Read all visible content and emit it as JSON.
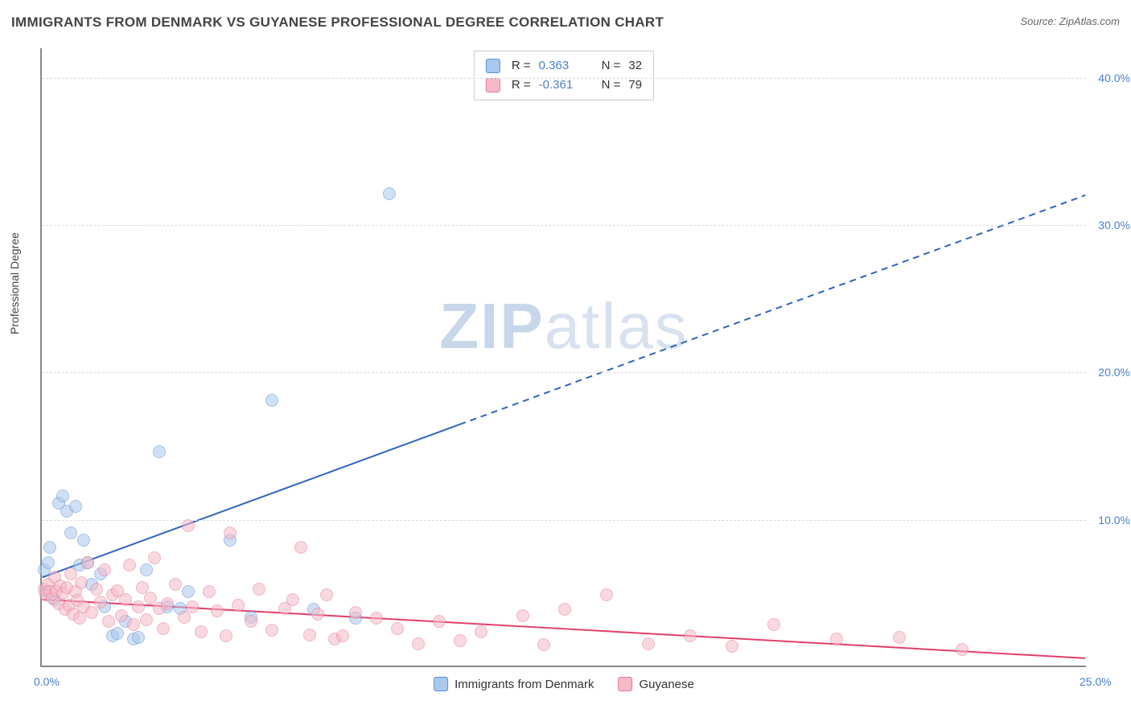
{
  "title": "IMMIGRANTS FROM DENMARK VS GUYANESE PROFESSIONAL DEGREE CORRELATION CHART",
  "source_label": "Source: ",
  "source_value": "ZipAtlas.com",
  "y_axis_label": "Professional Degree",
  "watermark_a": "ZIP",
  "watermark_b": "atlas",
  "chart": {
    "type": "scatter",
    "background_color": "#ffffff",
    "grid_color": "#dddddd",
    "axis_color": "#888888",
    "xlim": [
      0,
      25
    ],
    "ylim": [
      0,
      42
    ],
    "x_ticks": [
      {
        "v": 0,
        "label": "0.0%"
      },
      {
        "v": 25,
        "label": "25.0%"
      }
    ],
    "y_ticks": [
      {
        "v": 10,
        "label": "10.0%"
      },
      {
        "v": 20,
        "label": "20.0%"
      },
      {
        "v": 30,
        "label": "30.0%"
      },
      {
        "v": 40,
        "label": "40.0%"
      }
    ],
    "marker_radius": 8,
    "marker_stroke_width": 1.5,
    "series": [
      {
        "id": "denmark",
        "label": "Immigrants from Denmark",
        "fill_color": "#aac7ec",
        "stroke_color": "#5b8fd6",
        "fill_opacity": 0.55,
        "R": "0.363",
        "N": "32",
        "trend": {
          "x1": 0,
          "y1": 6.0,
          "x2": 25,
          "y2": 32.0,
          "solid_until_x": 10,
          "color": "#2f64c0",
          "width": 2,
          "dash": "8 6"
        },
        "points": [
          [
            0.05,
            6.5
          ],
          [
            0.1,
            5.0
          ],
          [
            0.15,
            7.0
          ],
          [
            0.2,
            8.0
          ],
          [
            0.3,
            4.5
          ],
          [
            0.4,
            11.0
          ],
          [
            0.5,
            11.5
          ],
          [
            0.6,
            10.5
          ],
          [
            0.7,
            9.0
          ],
          [
            0.8,
            10.8
          ],
          [
            0.9,
            6.8
          ],
          [
            1.0,
            8.5
          ],
          [
            1.1,
            7.0
          ],
          [
            1.2,
            5.5
          ],
          [
            1.4,
            6.2
          ],
          [
            1.5,
            4.0
          ],
          [
            1.7,
            2.0
          ],
          [
            1.8,
            2.2
          ],
          [
            2.0,
            3.0
          ],
          [
            2.2,
            1.8
          ],
          [
            2.3,
            1.9
          ],
          [
            2.5,
            6.5
          ],
          [
            2.8,
            14.5
          ],
          [
            3.0,
            4.0
          ],
          [
            3.3,
            3.9
          ],
          [
            3.5,
            5.0
          ],
          [
            4.5,
            8.5
          ],
          [
            5.0,
            3.3
          ],
          [
            5.5,
            18.0
          ],
          [
            6.5,
            3.8
          ],
          [
            7.5,
            3.2
          ],
          [
            8.3,
            32.0
          ]
        ]
      },
      {
        "id": "guyanese",
        "label": "Guyanese",
        "fill_color": "#f5b9c8",
        "stroke_color": "#e37a99",
        "fill_opacity": 0.55,
        "R": "-0.361",
        "N": "79",
        "trend": {
          "x1": 0,
          "y1": 4.5,
          "x2": 25,
          "y2": 0.5,
          "solid_until_x": 25,
          "color": "#e23f6a",
          "width": 2,
          "dash": null
        },
        "points": [
          [
            0.05,
            5.2
          ],
          [
            0.1,
            4.8
          ],
          [
            0.15,
            5.5
          ],
          [
            0.2,
            5.0
          ],
          [
            0.25,
            4.6
          ],
          [
            0.3,
            6.0
          ],
          [
            0.35,
            5.1
          ],
          [
            0.4,
            4.2
          ],
          [
            0.45,
            5.4
          ],
          [
            0.5,
            4.9
          ],
          [
            0.55,
            3.8
          ],
          [
            0.6,
            5.3
          ],
          [
            0.65,
            4.1
          ],
          [
            0.7,
            6.2
          ],
          [
            0.75,
            3.5
          ],
          [
            0.8,
            5.0
          ],
          [
            0.85,
            4.4
          ],
          [
            0.9,
            3.2
          ],
          [
            0.95,
            5.6
          ],
          [
            1.0,
            4.0
          ],
          [
            1.1,
            7.0
          ],
          [
            1.2,
            3.6
          ],
          [
            1.3,
            5.2
          ],
          [
            1.4,
            4.3
          ],
          [
            1.5,
            6.5
          ],
          [
            1.6,
            3.0
          ],
          [
            1.7,
            4.8
          ],
          [
            1.8,
            5.1
          ],
          [
            1.9,
            3.4
          ],
          [
            2.0,
            4.5
          ],
          [
            2.1,
            6.8
          ],
          [
            2.2,
            2.8
          ],
          [
            2.3,
            4.0
          ],
          [
            2.4,
            5.3
          ],
          [
            2.5,
            3.1
          ],
          [
            2.6,
            4.6
          ],
          [
            2.7,
            7.3
          ],
          [
            2.8,
            3.9
          ],
          [
            2.9,
            2.5
          ],
          [
            3.0,
            4.2
          ],
          [
            3.2,
            5.5
          ],
          [
            3.4,
            3.3
          ],
          [
            3.5,
            9.5
          ],
          [
            3.6,
            4.0
          ],
          [
            3.8,
            2.3
          ],
          [
            4.0,
            5.0
          ],
          [
            4.2,
            3.7
          ],
          [
            4.4,
            2.0
          ],
          [
            4.5,
            9.0
          ],
          [
            4.7,
            4.1
          ],
          [
            5.0,
            3.0
          ],
          [
            5.2,
            5.2
          ],
          [
            5.5,
            2.4
          ],
          [
            5.8,
            3.9
          ],
          [
            6.0,
            4.5
          ],
          [
            6.2,
            8.0
          ],
          [
            6.4,
            2.1
          ],
          [
            6.6,
            3.5
          ],
          [
            6.8,
            4.8
          ],
          [
            7.0,
            1.8
          ],
          [
            7.2,
            2.0
          ],
          [
            7.5,
            3.6
          ],
          [
            8.0,
            3.2
          ],
          [
            8.5,
            2.5
          ],
          [
            9.0,
            1.5
          ],
          [
            9.5,
            3.0
          ],
          [
            10.0,
            1.7
          ],
          [
            10.5,
            2.3
          ],
          [
            11.5,
            3.4
          ],
          [
            12.0,
            1.4
          ],
          [
            12.5,
            3.8
          ],
          [
            13.5,
            4.8
          ],
          [
            14.5,
            1.5
          ],
          [
            15.5,
            2.0
          ],
          [
            16.5,
            1.3
          ],
          [
            17.5,
            2.8
          ],
          [
            19.0,
            1.8
          ],
          [
            20.5,
            1.9
          ],
          [
            22.0,
            1.1
          ]
        ]
      }
    ]
  },
  "legend_top": {
    "R_prefix": "R =",
    "N_prefix": "N ="
  }
}
